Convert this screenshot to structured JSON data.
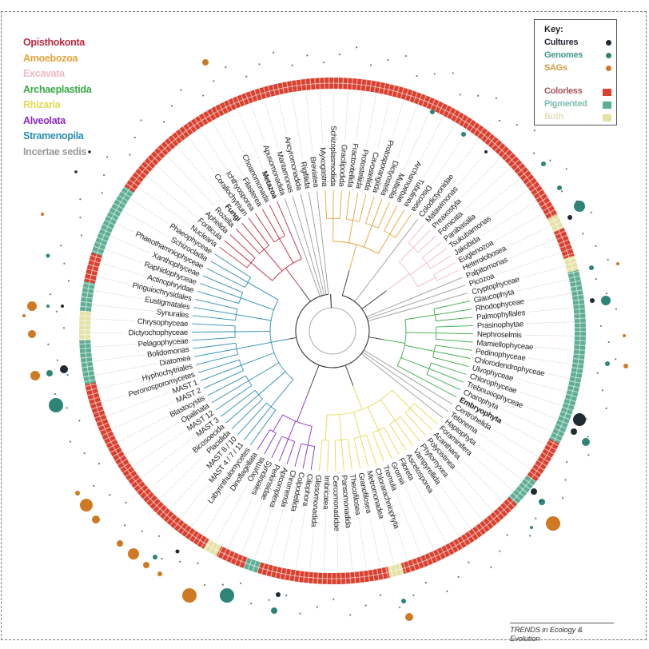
{
  "legend": {
    "groups": [
      {
        "name": "Opisthokonta",
        "color": "#c0293f"
      },
      {
        "name": "Amoebozoa",
        "color": "#e2a43a"
      },
      {
        "name": "Excavata",
        "color": "#f2b9c4"
      },
      {
        "name": "Archaeplastida",
        "color": "#3aaa48"
      },
      {
        "name": "Rhizaria",
        "color": "#e3da55"
      },
      {
        "name": "Alveolata",
        "color": "#8a2bc2"
      },
      {
        "name": "Stramenopila",
        "color": "#2b8db3"
      },
      {
        "name": "Incertae sedis",
        "color": "#9a9a9a"
      }
    ]
  },
  "key": {
    "title": "Key:",
    "items": [
      {
        "label": "Cultures",
        "color": "#1f2b33",
        "text_color": "#2a2a3a",
        "shape": "dot"
      },
      {
        "label": "Genomes",
        "color": "#2c8577",
        "text_color": "#3f9a8e",
        "shape": "dot"
      },
      {
        "label": "SAGs",
        "color": "#cf7a22",
        "text_color": "#d49a45",
        "shape": "dot"
      },
      {
        "label": "Colorless",
        "color": "#d9402f",
        "text_color": "#a8525e",
        "shape": "square"
      },
      {
        "label": "Pigmented",
        "color": "#5dae94",
        "text_color": "#7fbcb0",
        "shape": "square"
      },
      {
        "label": "Both",
        "color": "#e6e2a6",
        "text_color": "#e3e0b8",
        "shape": "square"
      }
    ]
  },
  "leaves": [
    {
      "name": "Myxogastria",
      "group": "Amoebozoa",
      "pigment": "colorless"
    },
    {
      "name": "Schizoplasmodiida",
      "group": "Amoebozoa",
      "pigment": "colorless"
    },
    {
      "name": "Gracilipodida",
      "group": "Amoebozoa",
      "pigment": "colorless"
    },
    {
      "name": "Fractovitellida",
      "group": "Amoebozoa",
      "pigment": "colorless"
    },
    {
      "name": "Protosteliida",
      "group": "Amoebozoa",
      "pigment": "colorless"
    },
    {
      "name": "Cavosteliida",
      "group": "Amoebozoa",
      "pigment": "colorless"
    },
    {
      "name": "Protosporangiida",
      "group": "Amoebozoa",
      "pigment": "colorless"
    },
    {
      "name": "Dictyostelia",
      "group": "Amoebozoa",
      "pigment": "colorless"
    },
    {
      "name": "Multicilia",
      "group": "Amoebozoa",
      "pigment": "colorless"
    },
    {
      "name": "Archamoebae",
      "group": "Amoebozoa",
      "pigment": "colorless"
    },
    {
      "name": "Tubulinea",
      "group": "Amoebozoa",
      "pigment": "colorless"
    },
    {
      "name": "Discosea",
      "group": "Amoebozoa",
      "pigment": "colorless"
    },
    {
      "name": "Colodictyonidae",
      "group": "Incertae sedis",
      "pigment": "colorless"
    },
    {
      "name": "Malawimonas",
      "group": "Excavata",
      "pigment": "colorless"
    },
    {
      "name": "Preaxostyla",
      "group": "Excavata",
      "pigment": "colorless"
    },
    {
      "name": "Fornicata",
      "group": "Excavata",
      "pigment": "colorless"
    },
    {
      "name": "Parabasalia",
      "group": "Excavata",
      "pigment": "colorless"
    },
    {
      "name": "Tsukubamonas",
      "group": "Excavata",
      "pigment": "colorless"
    },
    {
      "name": "Jakobida",
      "group": "Excavata",
      "pigment": "colorless"
    },
    {
      "name": "Euglenozoa",
      "group": "Excavata",
      "pigment": "colorless"
    },
    {
      "name": "Heterolobosea",
      "group": "Excavata",
      "pigment": "both"
    },
    {
      "name": "Palpitomonas",
      "group": "Incertae sedis",
      "pigment": "colorless"
    },
    {
      "name": "Picozoa",
      "group": "Incertae sedis",
      "pigment": "colorless"
    },
    {
      "name": "Cryptophyceae",
      "group": "Incertae sedis",
      "pigment": "both"
    },
    {
      "name": "Glaucophyta",
      "group": "Archaeplastida",
      "pigment": "pigmented"
    },
    {
      "name": "Rhodophyceae",
      "group": "Archaeplastida",
      "pigment": "pigmented"
    },
    {
      "name": "Palmophyllales",
      "group": "Archaeplastida",
      "pigment": "pigmented"
    },
    {
      "name": "Prasinophytae",
      "group": "Archaeplastida",
      "pigment": "pigmented"
    },
    {
      "name": "Nephroselmis",
      "group": "Archaeplastida",
      "pigment": "pigmented"
    },
    {
      "name": "Mamiellophyceae",
      "group": "Archaeplastida",
      "pigment": "pigmented"
    },
    {
      "name": "Pedinophyceae",
      "group": "Archaeplastida",
      "pigment": "pigmented"
    },
    {
      "name": "Chlorodendrophyceae",
      "group": "Archaeplastida",
      "pigment": "pigmented"
    },
    {
      "name": "Ulvophyceae",
      "group": "Archaeplastida",
      "pigment": "pigmented"
    },
    {
      "name": "Chlorophyceae",
      "group": "Archaeplastida",
      "pigment": "pigmented"
    },
    {
      "name": "Trebouxiophyceae",
      "group": "Archaeplastida",
      "pigment": "pigmented"
    },
    {
      "name": "Charophyta",
      "group": "Archaeplastida",
      "pigment": "pigmented"
    },
    {
      "name": "Embryophyta",
      "group": "Archaeplastida",
      "pigment": "colorless",
      "bold": true
    },
    {
      "name": "Centrohelida",
      "group": "Incertae sedis",
      "pigment": "colorless"
    },
    {
      "name": "Telonema",
      "group": "Incertae sedis",
      "pigment": "colorless"
    },
    {
      "name": "Haptophyta",
      "group": "Incertae sedis",
      "pigment": "pigmented"
    },
    {
      "name": "Foraminifera",
      "group": "Rhizaria",
      "pigment": "pigmented"
    },
    {
      "name": "Acantharia",
      "group": "Rhizaria",
      "pigment": "colorless"
    },
    {
      "name": "Polycistinea",
      "group": "Rhizaria",
      "pigment": "colorless"
    },
    {
      "name": "Phytomyxea",
      "group": "Rhizaria",
      "pigment": "colorless"
    },
    {
      "name": "Vampyrellida",
      "group": "Rhizaria",
      "pigment": "colorless"
    },
    {
      "name": "Ascetosporea",
      "group": "Rhizaria",
      "pigment": "colorless"
    },
    {
      "name": "Filoreta",
      "group": "Rhizaria",
      "pigment": "colorless"
    },
    {
      "name": "Gromia",
      "group": "Rhizaria",
      "pigment": "colorless"
    },
    {
      "name": "Tremula",
      "group": "Rhizaria",
      "pigment": "colorless"
    },
    {
      "name": "Chlorarachniophyta",
      "group": "Rhizaria",
      "pigment": "colorless"
    },
    {
      "name": "Metromonadea",
      "group": "Rhizaria",
      "pigment": "both"
    },
    {
      "name": "Granofilosea",
      "group": "Rhizaria",
      "pigment": "colorless"
    },
    {
      "name": "Thecofilosea",
      "group": "Rhizaria",
      "pigment": "colorless"
    },
    {
      "name": "Pansomonadida",
      "group": "Rhizaria",
      "pigment": "colorless"
    },
    {
      "name": "Cercomonadidae",
      "group": "Rhizaria",
      "pigment": "colorless"
    },
    {
      "name": "Imbricatea",
      "group": "Rhizaria",
      "pigment": "colorless"
    },
    {
      "name": "Glissomonadida",
      "group": "Rhizaria",
      "pigment": "colorless"
    },
    {
      "name": "Ciliophora",
      "group": "Alveolata",
      "pigment": "colorless"
    },
    {
      "name": "Colpodellida",
      "group": "Alveolata",
      "pigment": "colorless"
    },
    {
      "name": "Chromerida",
      "group": "Alveolata",
      "pigment": "colorless"
    },
    {
      "name": "Apicomplexa",
      "group": "Alveolata",
      "pigment": "pigmented"
    },
    {
      "name": "Perkinsidae",
      "group": "Alveolata",
      "pigment": "colorless"
    },
    {
      "name": "Syndiniales",
      "group": "Alveolata",
      "pigment": "colorless"
    },
    {
      "name": "Oxyrrhis",
      "group": "Alveolata",
      "pigment": "both"
    },
    {
      "name": "Dinoflagellata",
      "group": "Alveolata",
      "pigment": "colorless"
    },
    {
      "name": "Labyrinthulomycetes",
      "group": "Stramenopila",
      "pigment": "colorless"
    },
    {
      "name": "MAST 4 / 7 / 11",
      "group": "Stramenopila",
      "pigment": "colorless"
    },
    {
      "name": "MAST 8 / 10",
      "group": "Stramenopila",
      "pigment": "colorless"
    },
    {
      "name": "Placidida",
      "group": "Stramenopila",
      "pigment": "colorless"
    },
    {
      "name": "Bicosoecida",
      "group": "Stramenopila",
      "pigment": "colorless"
    },
    {
      "name": "MAST 3",
      "group": "Stramenopila",
      "pigment": "colorless"
    },
    {
      "name": "MAST 12",
      "group": "Stramenopila",
      "pigment": "colorless"
    },
    {
      "name": "Opalinata",
      "group": "Stramenopila",
      "pigment": "colorless"
    },
    {
      "name": "Blastocystis",
      "group": "Stramenopila",
      "pigment": "colorless"
    },
    {
      "name": "MAST 2",
      "group": "Stramenopila",
      "pigment": "colorless"
    },
    {
      "name": "MAST 1",
      "group": "Stramenopila",
      "pigment": "colorless"
    },
    {
      "name": "Peronosporomycetes",
      "group": "Stramenopila",
      "pigment": "colorless"
    },
    {
      "name": "Hyphochytriales",
      "group": "Stramenopila",
      "pigment": "colorless"
    },
    {
      "name": "Diatomea",
      "group": "Stramenopila",
      "pigment": "pigmented"
    },
    {
      "name": "Bolidomonas",
      "group": "Stramenopila",
      "pigment": "pigmented"
    },
    {
      "name": "Pelagophyceae",
      "group": "Stramenopila",
      "pigment": "pigmented"
    },
    {
      "name": "Dictyochophyceae",
      "group": "Stramenopila",
      "pigment": "both"
    },
    {
      "name": "Chrysophyceae",
      "group": "Stramenopila",
      "pigment": "both"
    },
    {
      "name": "Synurales",
      "group": "Stramenopila",
      "pigment": "pigmented"
    },
    {
      "name": "Eustigmatales",
      "group": "Stramenopila",
      "pigment": "pigmented"
    },
    {
      "name": "Pinguiochrysidales",
      "group": "Stramenopila",
      "pigment": "colorless"
    },
    {
      "name": "Actinophryidae",
      "group": "Stramenopila",
      "pigment": "colorless"
    },
    {
      "name": "Raphidophyceae",
      "group": "Stramenopila",
      "pigment": "pigmented"
    },
    {
      "name": "Xanthophyceae",
      "group": "Stramenopila",
      "pigment": "pigmented"
    },
    {
      "name": "Phaeothamniophyceae",
      "group": "Stramenopila",
      "pigment": "pigmented"
    },
    {
      "name": "Schizocladia",
      "group": "Stramenopila",
      "pigment": "pigmented"
    },
    {
      "name": "Phaeophyceae",
      "group": "Stramenopila",
      "pigment": "pigmented"
    },
    {
      "name": "Nuclearia",
      "group": "Opisthokonta",
      "pigment": "colorless"
    },
    {
      "name": "Fonticula",
      "group": "Opisthokonta",
      "pigment": "colorless"
    },
    {
      "name": "Aphelida",
      "group": "Opisthokonta",
      "pigment": "colorless"
    },
    {
      "name": "Rozella",
      "group": "Opisthokonta",
      "pigment": "colorless"
    },
    {
      "name": "Fungi",
      "group": "Opisthokonta",
      "pigment": "colorless",
      "bold": true
    },
    {
      "name": "Corallochytrium",
      "group": "Opisthokonta",
      "pigment": "colorless"
    },
    {
      "name": "Ichthyosporea",
      "group": "Opisthokonta",
      "pigment": "colorless"
    },
    {
      "name": "Filasterea",
      "group": "Opisthokonta",
      "pigment": "colorless"
    },
    {
      "name": "Choanomonada",
      "group": "Opisthokonta",
      "pigment": "colorless"
    },
    {
      "name": "Metazoa",
      "group": "Opisthokonta",
      "pigment": "colorless",
      "bold": true
    },
    {
      "name": "Apusomonadida",
      "group": "Incertae sedis",
      "pigment": "colorless"
    },
    {
      "name": "Mantamonas",
      "group": "Incertae sedis",
      "pigment": "colorless"
    },
    {
      "name": "Ancyromonadida",
      "group": "Incertae sedis",
      "pigment": "colorless"
    },
    {
      "name": "Rigifilida",
      "group": "Incertae sedis",
      "pigment": "colorless"
    },
    {
      "name": "Breviatea",
      "group": "Incertae sedis",
      "pigment": "colorless"
    }
  ],
  "footer": {
    "credit": "TRENDS in Ecology & Evolution"
  }
}
